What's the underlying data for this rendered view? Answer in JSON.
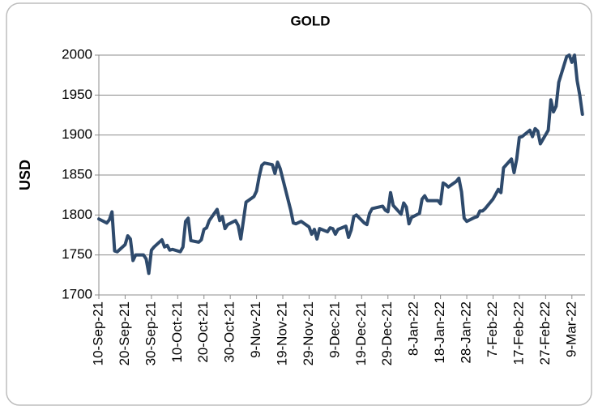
{
  "chart_data": {
    "type": "line",
    "title": "GOLD",
    "y_label": "USD",
    "color": "#2e4a6c",
    "grid": true,
    "x": [
      "2021-09-10",
      "2021-09-13",
      "2021-09-14",
      "2021-09-15",
      "2021-09-16",
      "2021-09-17",
      "2021-09-20",
      "2021-09-21",
      "2021-09-22",
      "2021-09-23",
      "2021-09-24",
      "2021-09-27",
      "2021-09-28",
      "2021-09-29",
      "2021-09-30",
      "2021-10-01",
      "2021-10-04",
      "2021-10-05",
      "2021-10-06",
      "2021-10-07",
      "2021-10-08",
      "2021-10-11",
      "2021-10-12",
      "2021-10-13",
      "2021-10-14",
      "2021-10-15",
      "2021-10-18",
      "2021-10-19",
      "2021-10-20",
      "2021-10-21",
      "2021-10-22",
      "2021-10-25",
      "2021-10-26",
      "2021-10-27",
      "2021-10-28",
      "2021-10-29",
      "2021-11-01",
      "2021-11-02",
      "2021-11-03",
      "2021-11-04",
      "2021-11-05",
      "2021-11-08",
      "2021-11-09",
      "2021-11-10",
      "2021-11-11",
      "2021-11-12",
      "2021-11-15",
      "2021-11-16",
      "2021-11-17",
      "2021-11-18",
      "2021-11-19",
      "2021-11-22",
      "2021-11-23",
      "2021-11-24",
      "2021-11-26",
      "2021-11-29",
      "2021-11-30",
      "2021-12-01",
      "2021-12-02",
      "2021-12-03",
      "2021-12-06",
      "2021-12-07",
      "2021-12-08",
      "2021-12-09",
      "2021-12-10",
      "2021-12-13",
      "2021-12-14",
      "2021-12-15",
      "2021-12-16",
      "2021-12-17",
      "2021-12-20",
      "2021-12-21",
      "2021-12-22",
      "2021-12-23",
      "2021-12-27",
      "2021-12-28",
      "2021-12-29",
      "2021-12-30",
      "2021-12-31",
      "2022-01-03",
      "2022-01-04",
      "2022-01-05",
      "2022-01-06",
      "2022-01-07",
      "2022-01-10",
      "2022-01-11",
      "2022-01-12",
      "2022-01-13",
      "2022-01-14",
      "2022-01-17",
      "2022-01-18",
      "2022-01-19",
      "2022-01-20",
      "2022-01-21",
      "2022-01-24",
      "2022-01-25",
      "2022-01-26",
      "2022-01-27",
      "2022-01-28",
      "2022-01-31",
      "2022-02-01",
      "2022-02-02",
      "2022-02-03",
      "2022-02-04",
      "2022-02-07",
      "2022-02-08",
      "2022-02-09",
      "2022-02-10",
      "2022-02-11",
      "2022-02-14",
      "2022-02-15",
      "2022-02-16",
      "2022-02-17",
      "2022-02-18",
      "2022-02-21",
      "2022-02-22",
      "2022-02-23",
      "2022-02-24",
      "2022-02-25",
      "2022-02-28",
      "2022-03-01",
      "2022-03-02",
      "2022-03-03",
      "2022-03-04",
      "2022-03-07",
      "2022-03-08",
      "2022-03-09",
      "2022-03-10",
      "2022-03-11",
      "2022-03-12",
      "2022-03-13"
    ],
    "values": [
      1795,
      1790,
      1794,
      1804,
      1755,
      1754,
      1763,
      1774,
      1770,
      1743,
      1750,
      1750,
      1745,
      1727,
      1756,
      1760,
      1769,
      1760,
      1762,
      1756,
      1757,
      1754,
      1760,
      1792,
      1796,
      1768,
      1766,
      1769,
      1782,
      1784,
      1793,
      1807,
      1793,
      1798,
      1783,
      1788,
      1793,
      1787,
      1770,
      1793,
      1816,
      1823,
      1830,
      1848,
      1862,
      1865,
      1863,
      1852,
      1866,
      1858,
      1845,
      1806,
      1790,
      1789,
      1792,
      1785,
      1776,
      1782,
      1770,
      1783,
      1779,
      1784,
      1783,
      1776,
      1782,
      1786,
      1772,
      1781,
      1798,
      1800,
      1790,
      1788,
      1802,
      1808,
      1811,
      1806,
      1804,
      1828,
      1812,
      1801,
      1815,
      1810,
      1789,
      1797,
      1802,
      1820,
      1824,
      1818,
      1818,
      1818,
      1814,
      1840,
      1838,
      1835,
      1842,
      1846,
      1829,
      1796,
      1792,
      1797,
      1798,
      1805,
      1805,
      1808,
      1820,
      1826,
      1832,
      1828,
      1859,
      1870,
      1853,
      1870,
      1897,
      1898,
      1906,
      1898,
      1908,
      1905,
      1889,
      1906,
      1944,
      1929,
      1936,
      1966,
      1998,
      2000,
      1991,
      2000,
      1968,
      1950,
      1926
    ],
    "xlim": [
      "2021-09-10",
      "2022-03-14"
    ],
    "xticks": [
      {
        "value": "2021-09-10",
        "label": "10-Sep-21"
      },
      {
        "value": "2021-09-20",
        "label": "20-Sep-21"
      },
      {
        "value": "2021-09-30",
        "label": "30-Sep-21"
      },
      {
        "value": "2021-10-10",
        "label": "10-Oct-21"
      },
      {
        "value": "2021-10-20",
        "label": "20-Oct-21"
      },
      {
        "value": "2021-10-30",
        "label": "30-Oct-21"
      },
      {
        "value": "2021-11-09",
        "label": "9-Nov-21"
      },
      {
        "value": "2021-11-19",
        "label": "19-Nov-21"
      },
      {
        "value": "2021-11-29",
        "label": "29-Nov-21"
      },
      {
        "value": "2021-12-09",
        "label": "9-Dec-21"
      },
      {
        "value": "2021-12-19",
        "label": "19-Dec-21"
      },
      {
        "value": "2021-12-29",
        "label": "29-Dec-21"
      },
      {
        "value": "2022-01-08",
        "label": "8-Jan-22"
      },
      {
        "value": "2022-01-18",
        "label": "18-Jan-22"
      },
      {
        "value": "2022-01-28",
        "label": "28-Jan-22"
      },
      {
        "value": "2022-02-07",
        "label": "7-Feb-22"
      },
      {
        "value": "2022-02-17",
        "label": "17-Feb-22"
      },
      {
        "value": "2022-02-27",
        "label": "27-Feb-22"
      },
      {
        "value": "2022-03-09",
        "label": "9-Mar-22"
      }
    ],
    "ylim": [
      1700,
      2000
    ],
    "yticks": [
      1700,
      1750,
      1800,
      1850,
      1900,
      1950,
      2000
    ]
  }
}
